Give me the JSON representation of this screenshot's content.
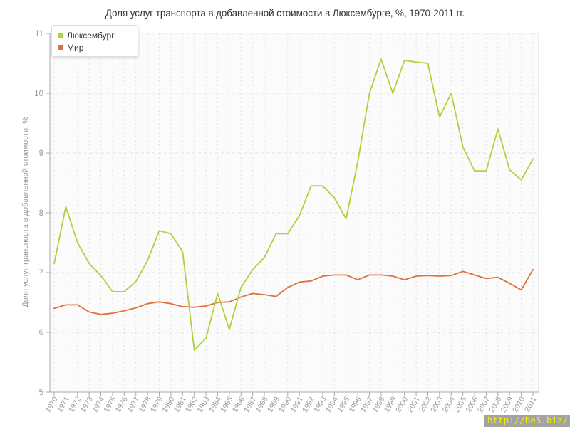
{
  "title": "Доля услуг транспорта в добавленной стоимости в Люксембурге, %, 1970-2011 гг.",
  "y_axis_title": "Доля услуг транспорта в добавленной стоимости, %",
  "watermark": {
    "text": "http://be5.biz/"
  },
  "legend": {
    "items": [
      {
        "label": "Люксембург",
        "color": "#afd13c"
      },
      {
        "label": "Мир",
        "color": "#e0703c"
      }
    ]
  },
  "colors": {
    "title": "#333333",
    "axis_text": "#999999",
    "grid": "#e0e0e0",
    "axis_line": "#a8a8a8",
    "plot_border": "#d9d9d9",
    "plot_bg": "#fbfbfb",
    "watermark_bg": "#a3a3a3",
    "watermark_text": "#f8f000"
  },
  "chart_data": {
    "type": "line",
    "title": "Доля услуг транспорта в добавленной стоимости в Люксембурге, %, 1970-2011 гг.",
    "xlabel": "",
    "ylabel": "Доля услуг транспорта в добавленной стоимости, %",
    "ylim": [
      5,
      11
    ],
    "yticks": [
      5,
      6,
      7,
      8,
      9,
      10,
      11
    ],
    "grid": true,
    "legend_position": "top-left",
    "x": [
      1970,
      1971,
      1972,
      1973,
      1974,
      1975,
      1976,
      1977,
      1978,
      1979,
      1980,
      1981,
      1982,
      1983,
      1984,
      1985,
      1986,
      1987,
      1988,
      1989,
      1990,
      1991,
      1992,
      1993,
      1994,
      1995,
      1996,
      1997,
      1998,
      1999,
      2000,
      2001,
      2002,
      2003,
      2004,
      2005,
      2006,
      2007,
      2008,
      2009,
      2010,
      2011
    ],
    "series": [
      {
        "name": "Люксембург",
        "color": "#afd13c",
        "values": [
          7.15,
          8.1,
          7.5,
          7.15,
          6.95,
          6.68,
          6.68,
          6.85,
          7.2,
          7.7,
          7.65,
          7.35,
          5.7,
          5.9,
          6.65,
          6.05,
          6.75,
          7.05,
          7.25,
          7.65,
          7.65,
          7.95,
          8.45,
          8.45,
          8.25,
          7.9,
          8.85,
          10.0,
          10.57,
          10.0,
          10.55,
          10.52,
          10.5,
          9.6,
          10.0,
          9.1,
          8.7,
          8.7,
          9.4,
          8.72,
          8.55,
          8.9
        ]
      },
      {
        "name": "Мир",
        "color": "#e0703c",
        "values": [
          6.4,
          6.46,
          6.46,
          6.34,
          6.3,
          6.32,
          6.36,
          6.41,
          6.48,
          6.51,
          6.48,
          6.43,
          6.42,
          6.44,
          6.5,
          6.51,
          6.59,
          6.65,
          6.63,
          6.6,
          6.75,
          6.84,
          6.86,
          6.94,
          6.96,
          6.96,
          6.88,
          6.96,
          6.96,
          6.94,
          6.88,
          6.94,
          6.95,
          6.94,
          6.95,
          7.02,
          6.96,
          6.9,
          6.92,
          6.82,
          6.71,
          7.05
        ]
      }
    ]
  }
}
